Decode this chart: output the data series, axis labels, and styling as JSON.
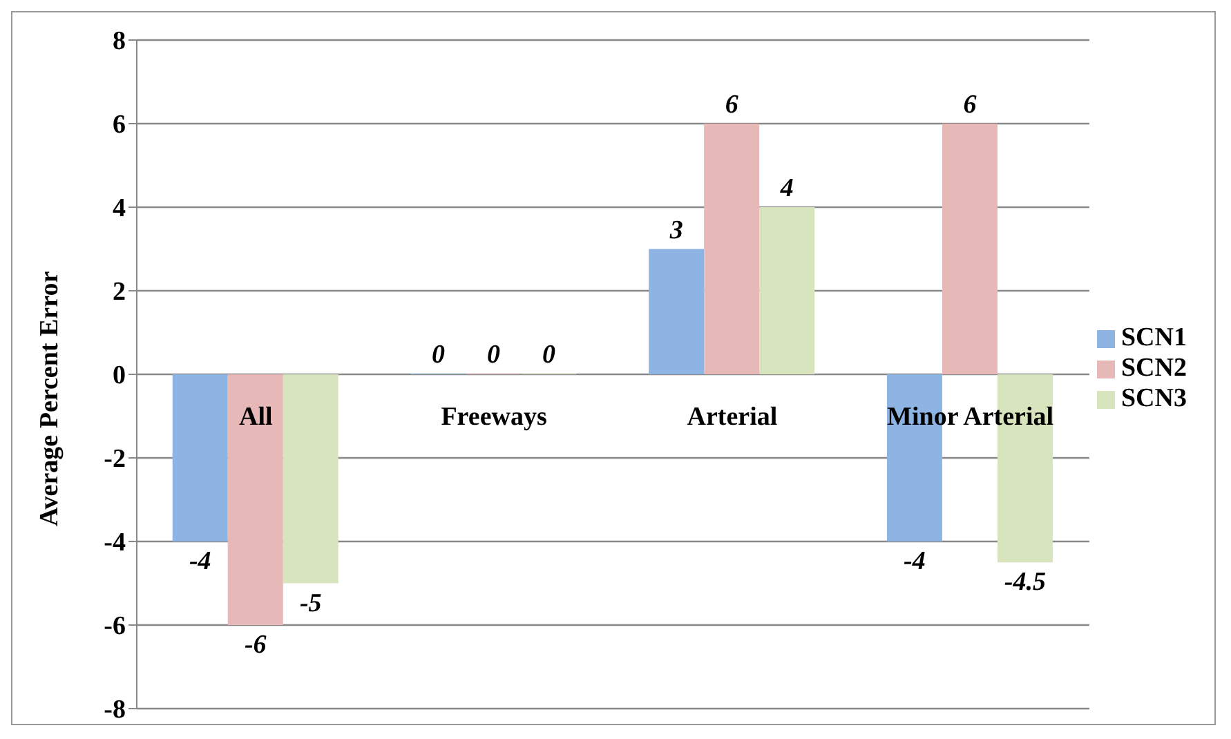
{
  "chart_data": {
    "type": "bar",
    "ylabel": "Average Percent Error",
    "categories": [
      "All",
      "Freeways",
      "Arterial",
      "Minor Arterial"
    ],
    "series": [
      {
        "name": "SCN1",
        "color": "#8eb4e3",
        "values": [
          -4,
          0,
          3,
          -4
        ]
      },
      {
        "name": "SCN2",
        "color": "#e6b9b8",
        "values": [
          -6,
          0,
          6,
          6
        ]
      },
      {
        "name": "SCN3",
        "color": "#d7e4bd",
        "values": [
          -5,
          0,
          4,
          -4.5
        ]
      }
    ],
    "ylim": [
      -8,
      8
    ],
    "yticks": [
      -8,
      -6,
      -4,
      -2,
      0,
      2,
      4,
      6,
      8
    ],
    "grid": "y",
    "legend": "right",
    "data_labels": true
  }
}
